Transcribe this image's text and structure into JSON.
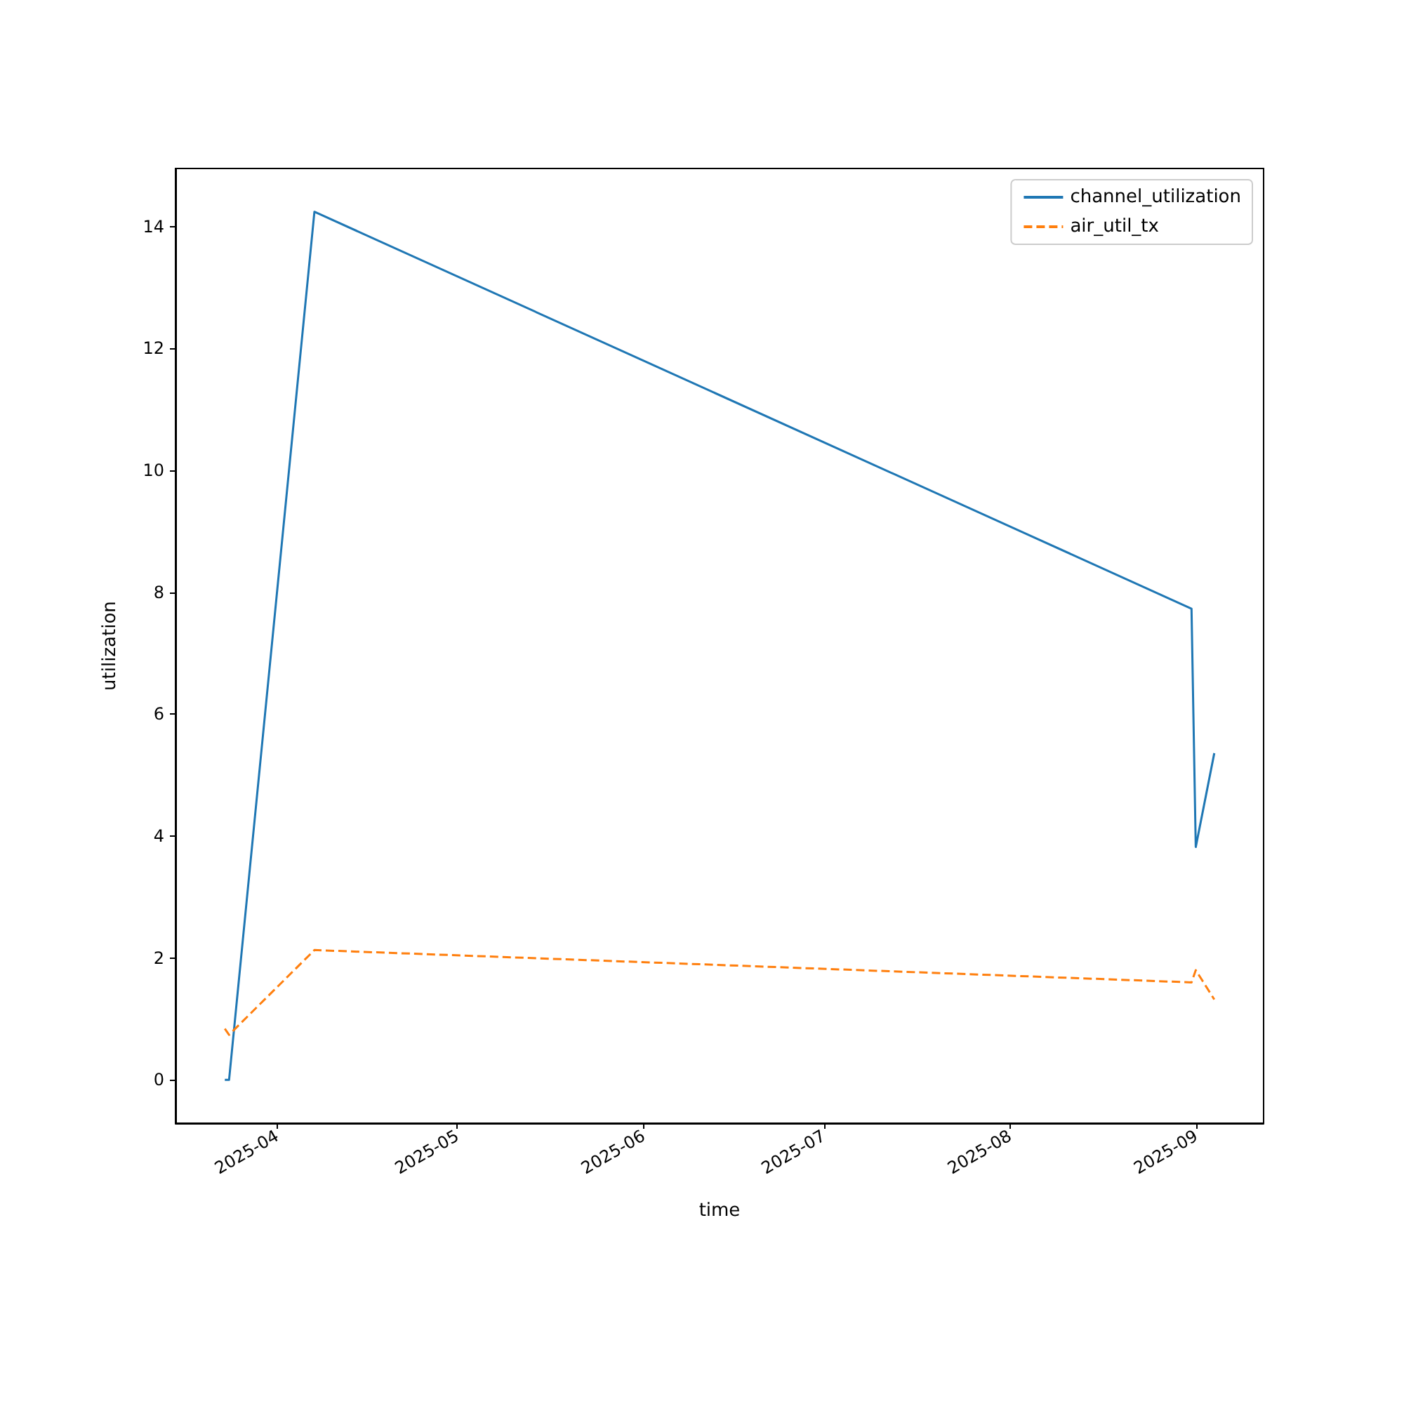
{
  "chart_data": {
    "type": "line",
    "xlabel": "time",
    "ylabel": "utilization",
    "x": [
      "2025-03-23T07:00",
      "2025-03-24T00:00",
      "2025-04-07T05:00",
      "2025-08-31T05:00",
      "2025-08-31T22:00",
      "2025-09-04T00:00"
    ],
    "series": [
      {
        "name": "channel_utilization",
        "color": "#1f77b4",
        "line_style": "solid",
        "values": [
          0.0,
          0.0,
          14.24,
          7.73,
          3.82,
          5.36
        ]
      },
      {
        "name": "air_util_tx",
        "color": "#ff7f0e",
        "line_style": "dashed",
        "values": [
          0.84,
          0.74,
          2.13,
          1.6,
          1.8,
          1.32
        ]
      }
    ],
    "xlim": [
      "2025-03-15T02:00",
      "2025-09-12T05:00"
    ],
    "xticks": [
      {
        "value": "2025-04-01",
        "label": "2025-04"
      },
      {
        "value": "2025-05-01",
        "label": "2025-05"
      },
      {
        "value": "2025-06-01",
        "label": "2025-06"
      },
      {
        "value": "2025-07-01",
        "label": "2025-07"
      },
      {
        "value": "2025-08-01",
        "label": "2025-08"
      },
      {
        "value": "2025-09-01",
        "label": "2025-09"
      }
    ],
    "ylim": [
      -0.71,
      14.95
    ],
    "yticks": [
      0,
      2,
      4,
      6,
      8,
      10,
      12,
      14
    ],
    "grid": false,
    "legend": "top right",
    "marker": "none"
  }
}
